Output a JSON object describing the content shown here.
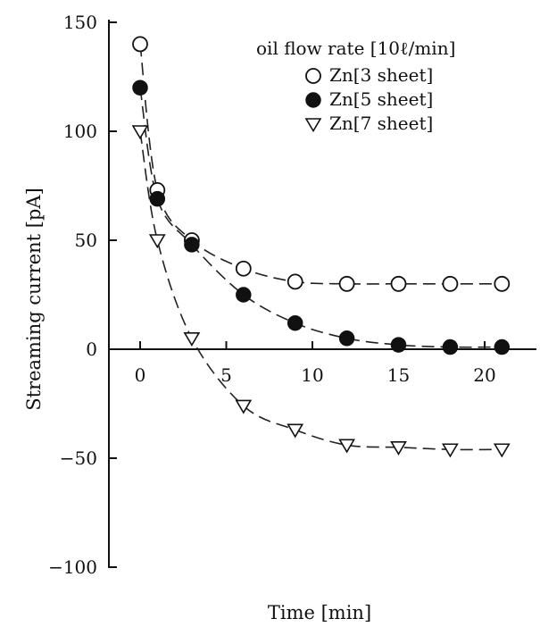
{
  "chart_data": {
    "type": "scatter",
    "title": "",
    "xlabel": "Time [min]",
    "ylabel": "Streaming current [pA]",
    "xlim": [
      -2.5,
      23
    ],
    "ylim": [
      -100,
      150
    ],
    "x_ticks": [
      0,
      5,
      10,
      15,
      20
    ],
    "y_ticks": [
      150,
      100,
      50,
      0,
      -50,
      -100
    ],
    "x_tick_labels": [
      "0",
      "5",
      "10",
      "15",
      "20"
    ],
    "y_tick_labels": [
      "150",
      "100",
      "50",
      "0",
      "−50",
      "−100"
    ],
    "legend_title": "oil flow rate [10ℓ/min]",
    "legend_position": "top-right",
    "grid": false,
    "series": [
      {
        "name": "Zn[3 sheet]",
        "marker": "open-circle",
        "x": [
          0,
          1,
          3,
          6,
          9,
          12,
          15,
          18,
          21
        ],
        "y": [
          140,
          73,
          50,
          37,
          31,
          30,
          30,
          30,
          30
        ]
      },
      {
        "name": "Zn[5 sheet]",
        "marker": "filled-circle",
        "x": [
          0,
          1,
          3,
          6,
          9,
          12,
          15,
          18,
          21
        ],
        "y": [
          120,
          69,
          48,
          25,
          12,
          5,
          2,
          1,
          1
        ]
      },
      {
        "name": "Zn[7 sheet]",
        "marker": "open-triangle-down",
        "x": [
          0,
          1,
          3,
          6,
          9,
          12,
          15,
          18,
          21
        ],
        "y": [
          100,
          50,
          5,
          -26,
          -37,
          -44,
          -45,
          -46,
          -46
        ]
      }
    ]
  }
}
